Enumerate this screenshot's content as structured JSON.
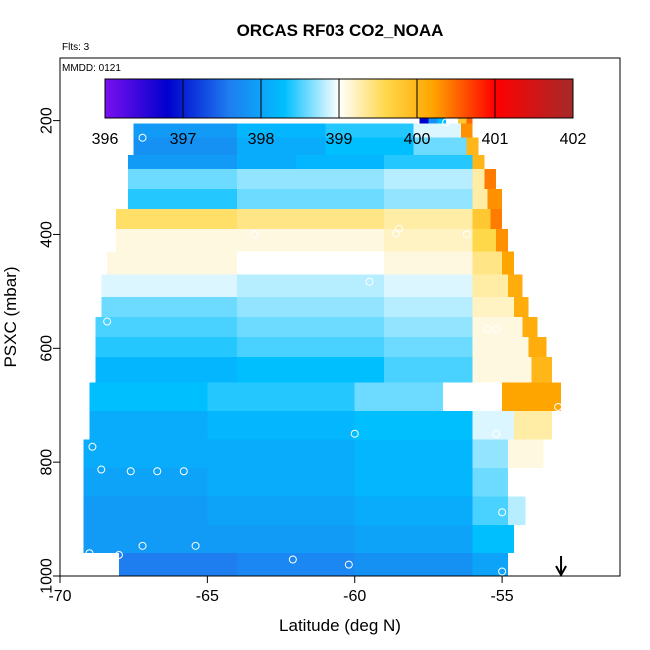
{
  "header": {
    "title": "ORCAS RF03 CO2_NOAA",
    "flights_label": "Flts: 3",
    "date_label": "MMDD: 0121"
  },
  "chart_data": {
    "type": "heatmap",
    "title": "ORCAS RF03 CO2_NOAA",
    "xlabel": "Latitude (deg N)",
    "ylabel": "PSXC (mbar)",
    "xlim": [
      -70,
      -51
    ],
    "ylim": [
      1000,
      90
    ],
    "y_reversed": true,
    "x_ticks": [
      -70,
      -65,
      -60,
      -55
    ],
    "y_ticks": [
      200,
      400,
      600,
      800,
      1000
    ],
    "colorbar": {
      "min": 396,
      "max": 402,
      "ticks": [
        396,
        397,
        398,
        399,
        400,
        401,
        402
      ],
      "colors": [
        "#7B10F0",
        "#0000CD",
        "#1E7EF0",
        "#00BFFF",
        "#FFFFFF",
        "#FFD84A",
        "#FFA500",
        "#FF0000",
        "#A52A2A"
      ],
      "color_stops": [
        396,
        396.8,
        397.6,
        398.3,
        399.0,
        399.6,
        400.2,
        401.0,
        402.0
      ]
    },
    "bands": [
      {
        "p": [
          180,
          205
        ],
        "segs": [
          [
            -57.8,
            -57.5,
            396.8
          ],
          [
            -57.5,
            -57.2,
            397.8
          ],
          [
            -57.2,
            -56.9,
            398.3
          ],
          [
            -56.9,
            -56.5,
            399.0
          ],
          [
            -56.5,
            -56.2,
            399.8
          ],
          [
            -56.2,
            -56.0,
            400.5
          ]
        ]
      },
      {
        "p": [
          205,
          230
        ],
        "segs": [
          [
            -67.5,
            -64.0,
            397.9
          ],
          [
            -64.0,
            -61.0,
            398.2
          ],
          [
            -61.0,
            -58.0,
            398.4
          ],
          [
            -58.0,
            -56.4,
            398.9
          ],
          [
            -56.4,
            -56.0,
            400.3
          ]
        ]
      },
      {
        "p": [
          230,
          260
        ],
        "segs": [
          [
            -67.5,
            -64.0,
            397.8
          ],
          [
            -64.0,
            -61.0,
            398.1
          ],
          [
            -61.0,
            -58.0,
            398.3
          ],
          [
            -58.0,
            -56.2,
            398.6
          ],
          [
            -56.2,
            -55.8,
            400.0
          ]
        ]
      },
      {
        "p": [
          260,
          285
        ],
        "segs": [
          [
            -67.7,
            -64.0,
            397.9
          ],
          [
            -64.0,
            -62.0,
            398.1
          ],
          [
            -62.0,
            -59.0,
            398.2
          ],
          [
            -59.0,
            -56.0,
            398.4
          ],
          [
            -56.0,
            -55.6,
            400.0
          ]
        ]
      },
      {
        "p": [
          285,
          320
        ],
        "segs": [
          [
            -67.7,
            -64.0,
            398.6
          ],
          [
            -64.0,
            -59.0,
            398.7
          ],
          [
            -59.0,
            -56.0,
            398.8
          ],
          [
            -56.0,
            -55.6,
            399.3
          ],
          [
            -55.6,
            -55.2,
            400.4
          ]
        ]
      },
      {
        "p": [
          320,
          355
        ],
        "segs": [
          [
            -67.7,
            -64.0,
            398.4
          ],
          [
            -64.0,
            -59.0,
            398.6
          ],
          [
            -59.0,
            -56.0,
            398.7
          ],
          [
            -56.0,
            -55.5,
            399.3
          ],
          [
            -55.5,
            -55.0,
            400.3
          ]
        ]
      },
      {
        "p": [
          355,
          390
        ],
        "segs": [
          [
            -68.1,
            -64.0,
            399.5
          ],
          [
            -64.0,
            -59.0,
            399.4
          ],
          [
            -59.0,
            -56.0,
            399.3
          ],
          [
            -56.0,
            -55.4,
            399.8
          ],
          [
            -55.4,
            -55.0,
            400.4
          ]
        ]
      },
      {
        "p": [
          390,
          430
        ],
        "segs": [
          [
            -68.1,
            -64.0,
            399.1
          ],
          [
            -64.0,
            -59.0,
            399.1
          ],
          [
            -59.0,
            -56.0,
            399.2
          ],
          [
            -56.0,
            -55.2,
            399.6
          ],
          [
            -55.2,
            -54.8,
            400.3
          ]
        ]
      },
      {
        "p": [
          430,
          470
        ],
        "segs": [
          [
            -68.4,
            -64.0,
            399.1
          ],
          [
            -64.0,
            -59.0,
            399.0
          ],
          [
            -59.0,
            -56.0,
            399.1
          ],
          [
            -56.0,
            -55.0,
            399.4
          ],
          [
            -55.0,
            -54.6,
            400.2
          ]
        ]
      },
      {
        "p": [
          470,
          510
        ],
        "segs": [
          [
            -68.6,
            -64.0,
            398.9
          ],
          [
            -64.0,
            -59.0,
            398.8
          ],
          [
            -59.0,
            -56.0,
            398.9
          ],
          [
            -56.0,
            -54.8,
            399.3
          ],
          [
            -54.8,
            -54.3,
            400.1
          ]
        ]
      },
      {
        "p": [
          510,
          545
        ],
        "segs": [
          [
            -68.6,
            -64.0,
            398.6
          ],
          [
            -64.0,
            -59.0,
            398.7
          ],
          [
            -59.0,
            -56.0,
            398.8
          ],
          [
            -56.0,
            -54.6,
            399.2
          ],
          [
            -54.6,
            -54.1,
            400.1
          ]
        ]
      },
      {
        "p": [
          545,
          580
        ],
        "segs": [
          [
            -68.8,
            -64.0,
            398.5
          ],
          [
            -64.0,
            -59.0,
            398.6
          ],
          [
            -59.0,
            -56.0,
            398.7
          ],
          [
            -56.0,
            -54.3,
            399.1
          ],
          [
            -54.3,
            -53.8,
            400.1
          ]
        ]
      },
      {
        "p": [
          580,
          615
        ],
        "segs": [
          [
            -68.8,
            -64.0,
            398.4
          ],
          [
            -64.0,
            -59.0,
            398.5
          ],
          [
            -59.0,
            -56.0,
            398.6
          ],
          [
            -56.0,
            -54.1,
            399.1
          ],
          [
            -54.1,
            -53.5,
            400.1
          ]
        ]
      },
      {
        "p": [
          615,
          660
        ],
        "segs": [
          [
            -68.8,
            -64.0,
            398.2
          ],
          [
            -64.0,
            -59.0,
            398.3
          ],
          [
            -59.0,
            -56.0,
            398.5
          ],
          [
            -56.0,
            -54.0,
            399.1
          ],
          [
            -54.0,
            -53.3,
            400.0
          ]
        ]
      },
      {
        "p": [
          660,
          710
        ],
        "segs": [
          [
            -69.0,
            -65.0,
            398.3
          ],
          [
            -65.0,
            -60.0,
            398.4
          ],
          [
            -60.0,
            -57.0,
            398.6
          ],
          [
            -57.0,
            -55.0,
            399.0
          ],
          [
            -55.0,
            -53.0,
            400.2
          ]
        ]
      },
      {
        "p": [
          710,
          760
        ],
        "segs": [
          [
            -69.0,
            -65.0,
            398.1
          ],
          [
            -65.0,
            -60.0,
            398.2
          ],
          [
            -60.0,
            -56.0,
            398.3
          ],
          [
            -56.0,
            -54.6,
            398.9
          ],
          [
            -54.6,
            -53.3,
            399.3
          ]
        ]
      },
      {
        "p": [
          760,
          810
        ],
        "segs": [
          [
            -69.2,
            -65.0,
            398.1
          ],
          [
            -65.0,
            -60.0,
            398.1
          ],
          [
            -60.0,
            -56.0,
            398.2
          ],
          [
            -56.0,
            -54.8,
            398.7
          ],
          [
            -54.8,
            -53.6,
            399.1
          ]
        ]
      },
      {
        "p": [
          810,
          860
        ],
        "segs": [
          [
            -69.2,
            -65.0,
            398.0
          ],
          [
            -65.0,
            -60.0,
            398.1
          ],
          [
            -60.0,
            -56.0,
            398.2
          ],
          [
            -56.0,
            -54.8,
            398.6
          ],
          [
            -54.8,
            -53.8,
            399.0
          ]
        ]
      },
      {
        "p": [
          860,
          910
        ],
        "segs": [
          [
            -69.2,
            -65.0,
            397.9
          ],
          [
            -65.0,
            -60.0,
            398.0
          ],
          [
            -60.0,
            -56.0,
            398.1
          ],
          [
            -56.0,
            -54.8,
            398.5
          ],
          [
            -54.8,
            -54.2,
            398.8
          ]
        ]
      },
      {
        "p": [
          910,
          960
        ],
        "segs": [
          [
            -69.2,
            -65.0,
            397.9
          ],
          [
            -65.0,
            -60.0,
            397.9
          ],
          [
            -60.0,
            -56.0,
            398.0
          ],
          [
            -56.0,
            -54.6,
            398.3
          ]
        ]
      },
      {
        "p": [
          960,
          1000
        ],
        "segs": [
          [
            -68.0,
            -64.0,
            397.6
          ],
          [
            -64.0,
            -60.0,
            397.7
          ],
          [
            -60.0,
            -56.0,
            397.8
          ],
          [
            -56.0,
            -54.8,
            398.0
          ]
        ]
      }
    ],
    "points": [
      [
        -57.8,
        180
      ],
      [
        -57.4,
        180
      ],
      [
        -56.6,
        180
      ],
      [
        -56.9,
        203
      ],
      [
        -67.2,
        230
      ],
      [
        -63.4,
        400
      ],
      [
        -58.5,
        390
      ],
      [
        -58.6,
        398
      ],
      [
        -56.2,
        400
      ],
      [
        -59.5,
        483
      ],
      [
        -68.4,
        553
      ],
      [
        -55.5,
        566
      ],
      [
        -55.2,
        566
      ],
      [
        -68.9,
        773
      ],
      [
        -68.6,
        813
      ],
      [
        -67.6,
        816
      ],
      [
        -66.7,
        816
      ],
      [
        -65.8,
        816
      ],
      [
        -60.0,
        750
      ],
      [
        -55.2,
        750
      ],
      [
        -55.0,
        888
      ],
      [
        -67.2,
        947
      ],
      [
        -65.4,
        947
      ],
      [
        -68.0,
        963
      ],
      [
        -69.0,
        960
      ],
      [
        -62.1,
        971
      ],
      [
        -60.2,
        980
      ],
      [
        -55.0,
        992
      ],
      [
        -53.1,
        703
      ]
    ],
    "arrow_lat": -53.0
  }
}
